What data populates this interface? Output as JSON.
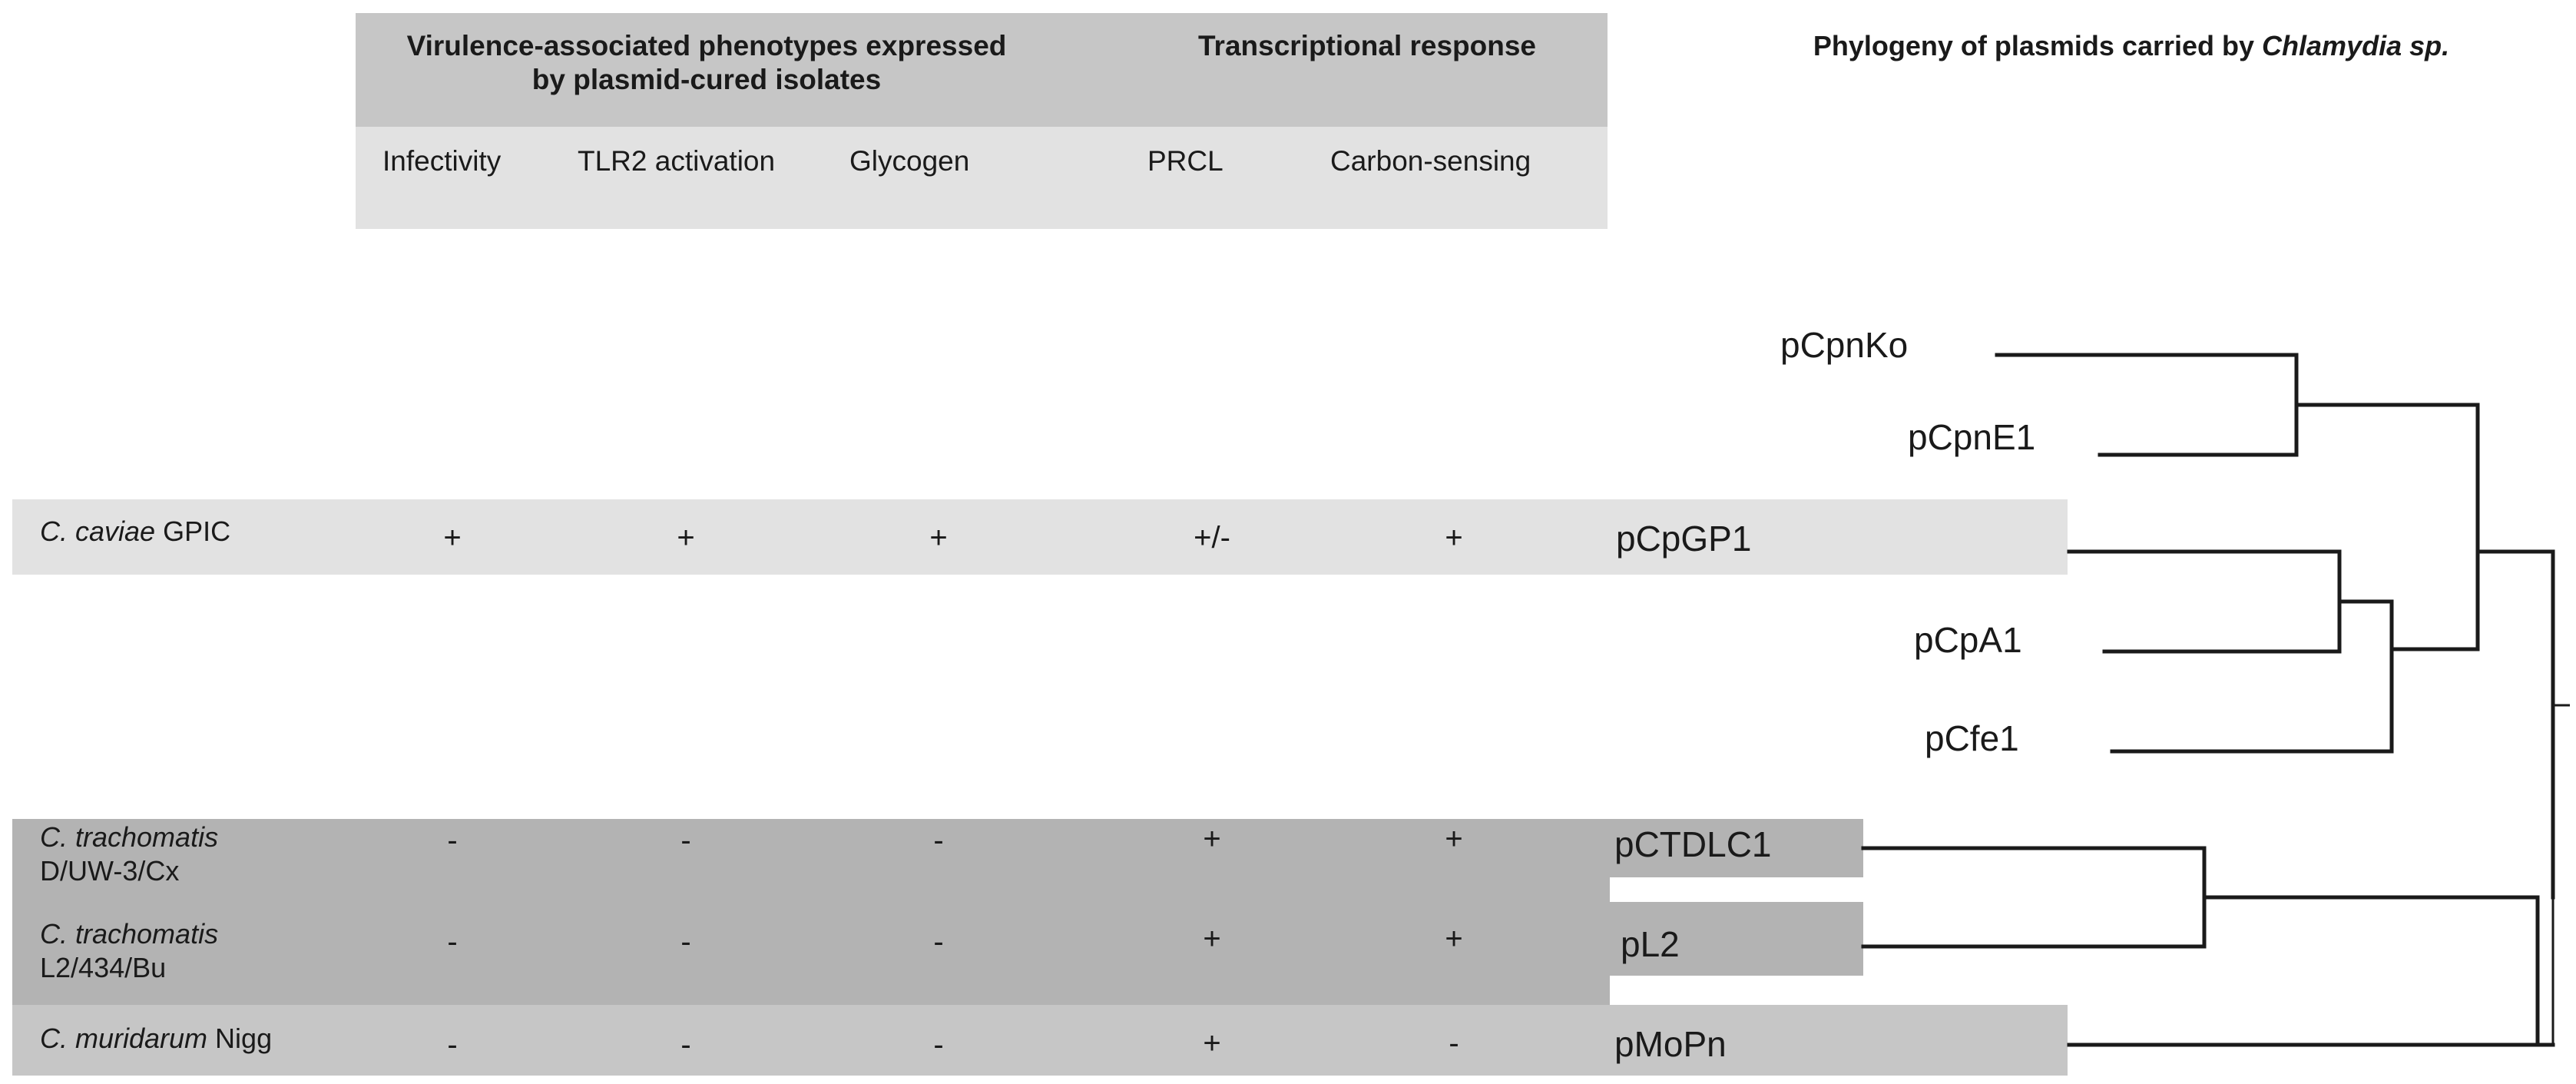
{
  "header": {
    "phenotypes_title": "Virulence-associated phenotypes expressed by plasmid-cured isolates",
    "phenotypes_title_line1": "Virulence-associated phenotypes expressed",
    "phenotypes_title_line2": "by plasmid-cured isolates",
    "transcription_title": "Transcriptional response",
    "columns": [
      "Infectivity",
      "TLR2 activation",
      "Glycogen",
      "PRCL",
      "Carbon-sensing"
    ]
  },
  "phylogeny_title": {
    "prefix": "Phylogeny of plasmids carried by ",
    "italic": "Chlamydia sp."
  },
  "rows": [
    {
      "species_italic": "C. caviae",
      "species_rest": " GPIC",
      "strain_line2": "",
      "values": [
        "+",
        "+",
        "+",
        "+/-",
        "+"
      ]
    },
    {
      "species_italic": "C. trachomatis",
      "species_rest": "",
      "strain_line2": "D/UW-3/Cx",
      "values": [
        "-",
        "-",
        "-",
        "+",
        "+"
      ]
    },
    {
      "species_italic": "C. trachomatis",
      "species_rest": "",
      "strain_line2": "L2/434/Bu",
      "values": [
        "-",
        "-",
        "-",
        "+",
        "+"
      ]
    },
    {
      "species_italic": "C. muridarum",
      "species_rest": " Nigg",
      "strain_line2": "",
      "values": [
        "-",
        "-",
        "-",
        "+",
        "-"
      ]
    }
  ],
  "plasmids": [
    "pCpnKo",
    "pCpnE1",
    "pCpGP1",
    "pCpA1",
    "pCfe1",
    "pCTDLC1",
    "pL2",
    "pMoPn"
  ],
  "colors": {
    "band_light": "#e2e2e2",
    "band_mid": "#c6c6c6",
    "band_dark": "#b3b3b3",
    "tree_line": "#1a1a1a"
  }
}
